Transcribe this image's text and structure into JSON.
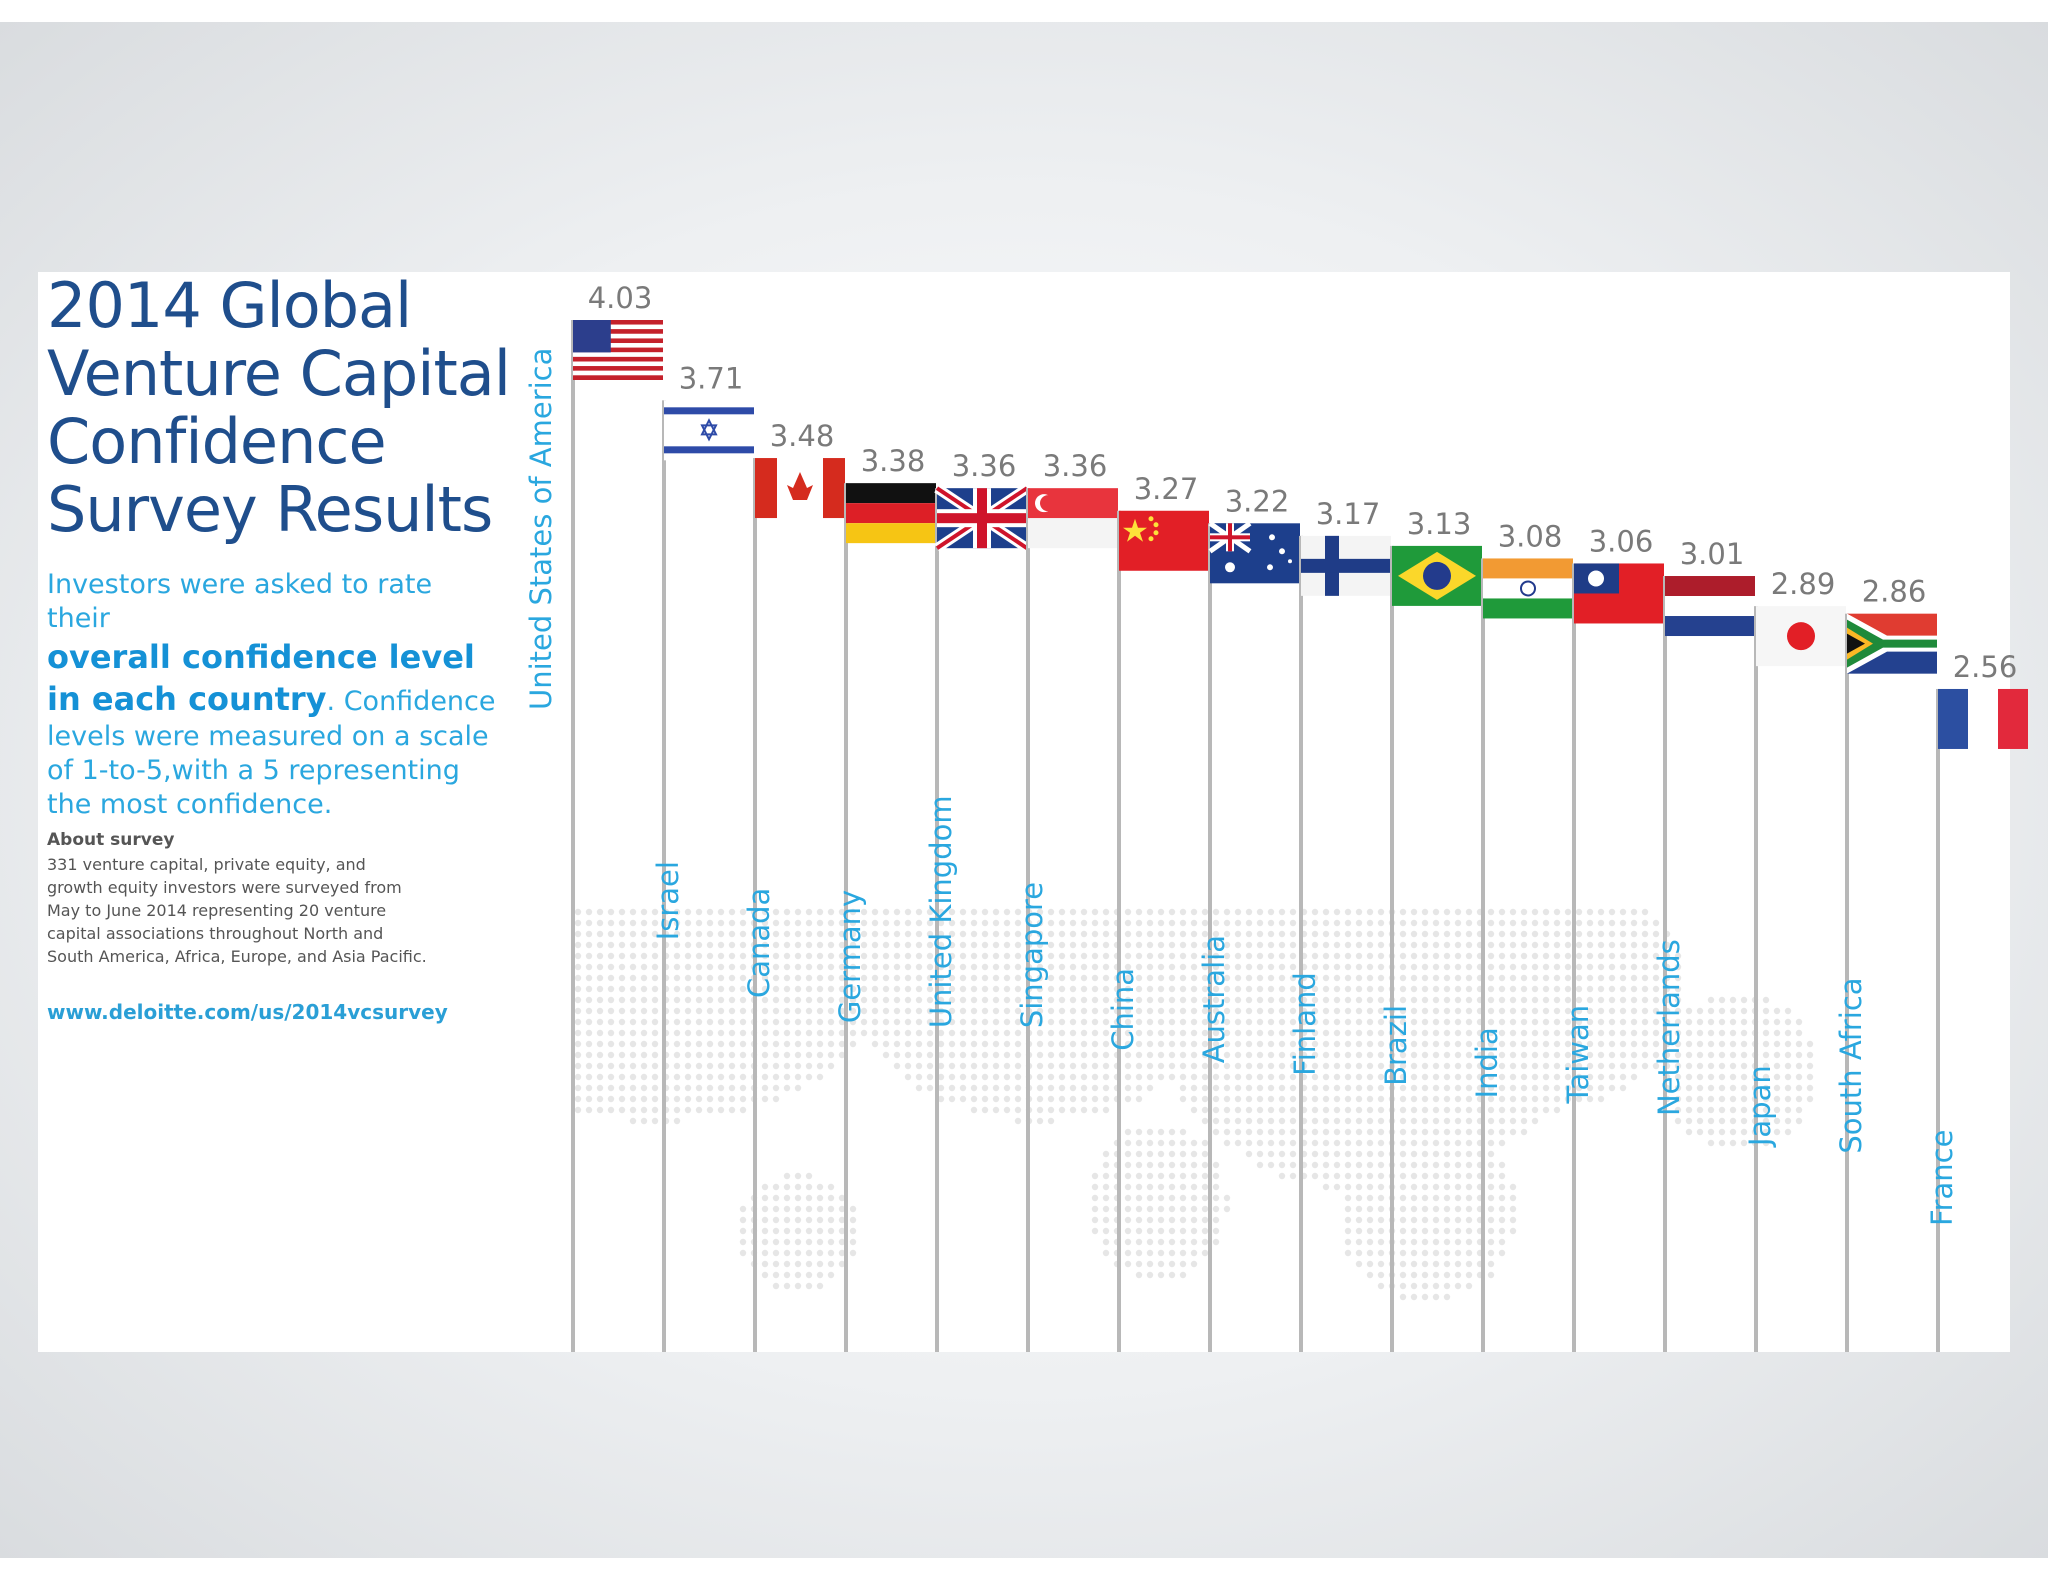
{
  "title_lines": [
    "2014 Global",
    "Venture Capital",
    "Confidence",
    "Survey Results"
  ],
  "intro": {
    "line1": "Investors were asked to rate their",
    "bold1": "overall confidence level",
    "bold2": "in each country",
    "rest1": ". Confidence",
    "rest2": "levels were measured on a scale",
    "rest3": "of 1-to-5,with a 5 representing",
    "rest4": "the most confidence."
  },
  "about": {
    "heading": "About survey",
    "lines": [
      "331 venture capital, private equity, and",
      "growth equity investors were surveyed from",
      "May to June 2014 representing 20 venture",
      "capital associations throughout North and",
      "South America, Africa, Europe, and Asia Pacific."
    ]
  },
  "link": "www.deloitte.com/us/2014vcsurvey",
  "colors": {
    "title": "#1f4e8c",
    "accent": "#2aa7df",
    "value_text": "#7a7a7a",
    "pole": "#b8b8b8",
    "country_label": "#2aa7df"
  },
  "chart_data": {
    "type": "bar",
    "scale": [
      1,
      5
    ],
    "categories": [
      "United States of America",
      "Israel",
      "Canada",
      "Germany",
      "United Kingdom",
      "Singapore",
      "China",
      "Australia",
      "Finland",
      "Brazil",
      "India",
      "Taiwan",
      "Netherlands",
      "Japan",
      "South Africa",
      "France"
    ],
    "values": [
      4.03,
      3.71,
      3.48,
      3.38,
      3.36,
      3.36,
      3.27,
      3.22,
      3.17,
      3.13,
      3.08,
      3.06,
      3.01,
      2.89,
      2.86,
      2.56
    ],
    "value_labels": [
      "4.03",
      "3.71",
      "3.48",
      "3.38",
      "3.36",
      "3.36",
      "3.27",
      "3.22",
      "3.17",
      "3.13",
      "3.08",
      "3.06",
      "3.01",
      "2.89",
      "2.86",
      "2.56"
    ],
    "flags": [
      "us-flag-icon",
      "israel-flag-icon",
      "canada-flag-icon",
      "germany-flag-icon",
      "uk-flag-icon",
      "singapore-flag-icon",
      "china-flag-icon",
      "australia-flag-icon",
      "finland-flag-icon",
      "brazil-flag-icon",
      "india-flag-icon",
      "taiwan-flag-icon",
      "netherlands-flag-icon",
      "japan-flag-icon",
      "south-africa-flag-icon",
      "france-flag-icon"
    ],
    "title": "2014 Global Venture Capital Confidence Survey Results",
    "xlabel": "",
    "ylabel": ""
  }
}
